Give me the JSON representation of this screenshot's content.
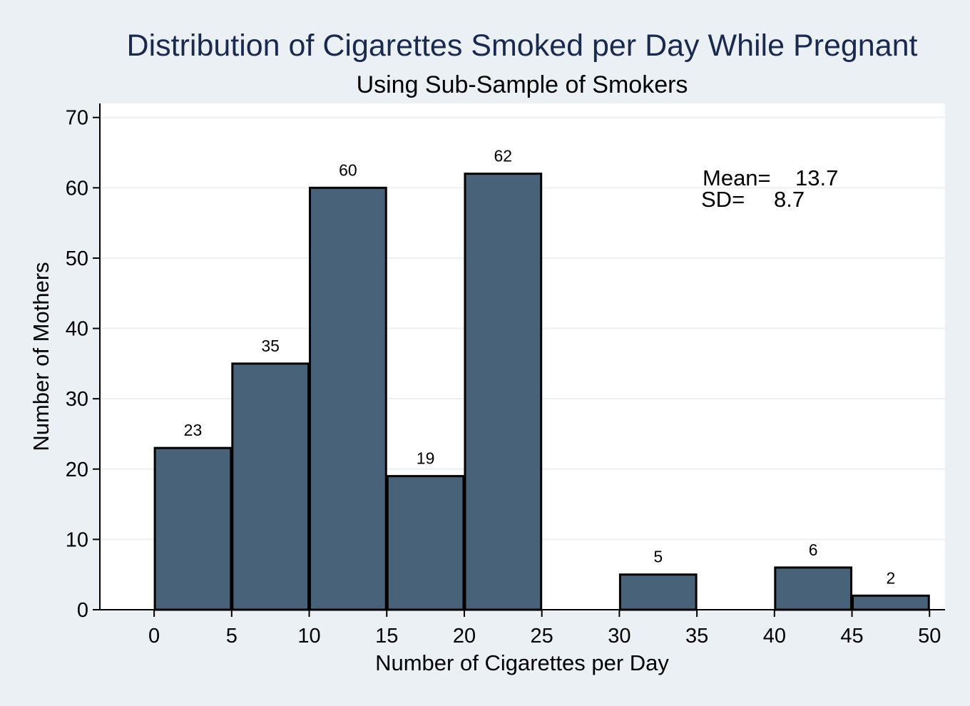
{
  "chart_data": {
    "type": "bar",
    "title": "Distribution of Cigarettes Smoked per Day While Pregnant",
    "subtitle": "Using Sub-Sample of Smokers",
    "xlabel": "Number of Cigarettes per Day",
    "ylabel": "Number of Mothers",
    "xlim": [
      -3.5,
      51
    ],
    "ylim": [
      0,
      72
    ],
    "xticks": [
      0,
      5,
      10,
      15,
      20,
      25,
      30,
      35,
      40,
      45,
      50
    ],
    "yticks": [
      0,
      10,
      20,
      30,
      40,
      50,
      60,
      70
    ],
    "grid": true,
    "bins": [
      {
        "start": 0,
        "end": 5,
        "value": 23
      },
      {
        "start": 5,
        "end": 10,
        "value": 35
      },
      {
        "start": 10,
        "end": 15,
        "value": 60
      },
      {
        "start": 15,
        "end": 20,
        "value": 19
      },
      {
        "start": 20,
        "end": 25,
        "value": 62
      },
      {
        "start": 30,
        "end": 35,
        "value": 5
      },
      {
        "start": 40,
        "end": 45,
        "value": 6
      },
      {
        "start": 45,
        "end": 50,
        "value": 2
      }
    ],
    "stats": {
      "mean_label": "Mean=",
      "mean_value": "13.7",
      "sd_label": "SD=",
      "sd_value": "8.7"
    },
    "colors": {
      "background": "#eaf0f3",
      "plot_background": "#ffffff",
      "bar_fill": "#48627a",
      "bar_edge": "#000000",
      "grid": "#eaf0f3",
      "title": "#1a2a4f"
    }
  }
}
